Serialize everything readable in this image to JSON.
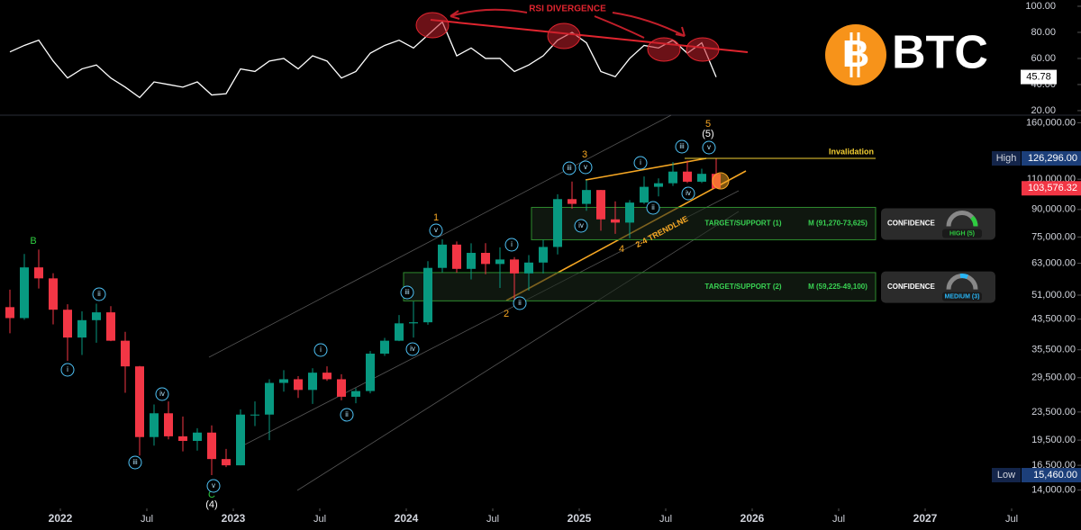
{
  "chart_data": {
    "type": "candlestick",
    "log_scale": true,
    "up_color": "#089981",
    "down_color": "#f23645",
    "x": [
      "2021-09",
      "2021-10",
      "2021-11",
      "2021-12",
      "2022-01",
      "2022-02",
      "2022-03",
      "2022-04",
      "2022-05",
      "2022-06",
      "2022-07",
      "2022-08",
      "2022-09",
      "2022-10",
      "2022-11",
      "2022-12",
      "2023-01",
      "2023-02",
      "2023-03",
      "2023-04",
      "2023-05",
      "2023-06",
      "2023-07",
      "2023-08",
      "2023-09",
      "2023-10",
      "2023-11",
      "2023-12",
      "2024-01",
      "2024-02",
      "2024-03",
      "2024-04",
      "2024-05",
      "2024-06",
      "2024-07",
      "2024-08",
      "2024-09",
      "2024-10",
      "2024-11",
      "2024-12",
      "2025-01",
      "2025-02",
      "2025-03",
      "2025-04",
      "2025-05",
      "2025-06",
      "2025-07",
      "2025-08",
      "2025-09",
      "2025-10"
    ],
    "open": [
      47100,
      43800,
      61300,
      57000,
      46300,
      38500,
      43200,
      45500,
      37700,
      31800,
      19900,
      23300,
      20000,
      19400,
      20500,
      17200,
      16500,
      23100,
      23100,
      28500,
      29200,
      27200,
      30500,
      29200,
      26000,
      27000,
      34600,
      37700,
      42300,
      42600,
      61100,
      71300,
      60700,
      67500,
      62700,
      64600,
      58900,
      63300,
      70200,
      96400,
      93400,
      102400,
      84300,
      82500,
      94200,
      104600,
      107100,
      115700,
      108200,
      114000
    ],
    "high": [
      52900,
      67000,
      69000,
      59000,
      48000,
      45800,
      48200,
      47400,
      40000,
      31900,
      24700,
      25200,
      22800,
      21100,
      21500,
      18400,
      23900,
      25200,
      29200,
      31000,
      29800,
      31400,
      31800,
      30200,
      27500,
      35200,
      38400,
      44700,
      48900,
      63900,
      73800,
      72800,
      71900,
      72000,
      70000,
      65600,
      66500,
      73600,
      99600,
      108300,
      109400,
      102500,
      95000,
      95800,
      112000,
      110600,
      123200,
      124500,
      117900,
      126296
    ],
    "low": [
      39600,
      43300,
      53300,
      42000,
      33000,
      34300,
      37200,
      37600,
      26700,
      17600,
      18800,
      19600,
      18100,
      18200,
      15460,
      16300,
      16500,
      21400,
      19500,
      26900,
      25800,
      24800,
      28900,
      25400,
      24900,
      26600,
      34100,
      37600,
      38500,
      41900,
      59300,
      59200,
      56600,
      58600,
      53500,
      49100,
      52600,
      58900,
      66800,
      90500,
      89200,
      78200,
      76600,
      74400,
      93400,
      98200,
      105200,
      107300,
      107300,
      103500
    ],
    "close": [
      43800,
      61300,
      57000,
      46300,
      38500,
      43200,
      45500,
      37700,
      31800,
      19900,
      23300,
      20000,
      19400,
      20500,
      17200,
      16500,
      23100,
      23100,
      28500,
      29200,
      27200,
      30500,
      29200,
      26000,
      27000,
      34600,
      37700,
      42300,
      42600,
      61100,
      71300,
      60700,
      67500,
      62700,
      64600,
      58900,
      63300,
      70200,
      96400,
      93400,
      102400,
      84300,
      82500,
      94200,
      104600,
      107100,
      115700,
      108200,
      114000,
      103576.32
    ],
    "ylim": [
      12400,
      166200
    ],
    "yticks": [
      {
        "value": 160000,
        "label": "160,000.00"
      },
      {
        "value": 110000,
        "label": "110,000.00"
      },
      {
        "value": 90000,
        "label": "90,000.00"
      },
      {
        "value": 75000,
        "label": "75,000.00"
      },
      {
        "value": 63000,
        "label": "63,000.00"
      },
      {
        "value": 51000,
        "label": "51,000.00"
      },
      {
        "value": 43500,
        "label": "43,500.00"
      },
      {
        "value": 35500,
        "label": "35,500.00"
      },
      {
        "value": 29500,
        "label": "29,500.00"
      },
      {
        "value": 23500,
        "label": "23,500.00"
      },
      {
        "value": 19500,
        "label": "19,500.00"
      },
      {
        "value": 16500,
        "label": "16,500.00"
      },
      {
        "value": 14000,
        "label": "14,000.00"
      }
    ],
    "xticks": [
      {
        "value": "2022-01",
        "label": "2022"
      },
      {
        "value": "2022-07",
        "label": "Jul"
      },
      {
        "value": "2023-01",
        "label": "2023"
      },
      {
        "value": "2023-07",
        "label": "Jul"
      },
      {
        "value": "2024-01",
        "label": "2024"
      },
      {
        "value": "2024-07",
        "label": "Jul"
      },
      {
        "value": "2025-01",
        "label": "2025"
      },
      {
        "value": "2025-07",
        "label": "Jul"
      },
      {
        "value": "2026-01",
        "label": "2026"
      },
      {
        "value": "2026-07",
        "label": "Jul"
      },
      {
        "value": "2027-01",
        "label": "2027"
      },
      {
        "value": "2027-07",
        "label": "Jul"
      }
    ],
    "high_marker": {
      "label": "High",
      "value": 126296,
      "value_label": "126,296.00"
    },
    "low_marker": {
      "label": "Low",
      "value": 15460,
      "value_label": "15,460.00"
    },
    "last_price": {
      "value": 103576.32,
      "value_label": "103,576.32"
    },
    "zones": [
      {
        "label": "TARGET/SUPPORT (1)",
        "range_label": "M (91,270-73,625)",
        "top": 91270,
        "bottom": 73625,
        "confidence_title": "CONFIDENCE",
        "confidence": "HIGH (5)",
        "color": "#2ecc40"
      },
      {
        "label": "TARGET/SUPPORT (2)",
        "range_label": "M (59,225-49,100)",
        "top": 59225,
        "bottom": 49100,
        "confidence_title": "CONFIDENCE",
        "confidence": "MEDIUM (3)",
        "color": "#29b6f6"
      }
    ],
    "rsi": {
      "values": [
        65,
        70,
        74,
        58,
        45,
        52,
        55,
        45,
        38,
        30,
        42,
        40,
        38,
        42,
        32,
        33,
        52,
        50,
        58,
        60,
        52,
        62,
        58,
        45,
        50,
        64,
        70,
        74,
        68,
        78,
        88,
        62,
        68,
        60,
        60,
        50,
        55,
        62,
        74,
        80,
        72,
        50,
        46,
        60,
        70,
        68,
        74,
        64,
        72,
        45.78
      ],
      "color": "#ffffff",
      "ylim": [
        17.2,
        104.8
      ],
      "yticks": [
        {
          "value": 100,
          "label": "100.00"
        },
        {
          "value": 80,
          "label": "80.00"
        },
        {
          "value": 60,
          "label": "60.00"
        },
        {
          "value": 40,
          "label": "40.00"
        },
        {
          "value": 20,
          "label": "20.00"
        }
      ],
      "annotation": "RSI DIVERGENCE"
    },
    "annotations": {
      "invalidation": "Invalidation",
      "trendline": "2-4 TRENDLNE"
    },
    "wave_labels": [
      {
        "text": "B",
        "color": "#2ecc40"
      },
      {
        "text": "C",
        "color": "#2ecc40"
      },
      {
        "text": "(4)",
        "color": "#ffffff"
      },
      {
        "text": "v",
        "circled": true
      },
      {
        "text": "i",
        "circled": true
      },
      {
        "text": "ii",
        "circled": true
      },
      {
        "text": "iii",
        "circled": true
      },
      {
        "text": "iv",
        "circled": true
      },
      {
        "text": "i",
        "circled": true
      },
      {
        "text": "ii",
        "circled": true
      },
      {
        "text": "iii",
        "circled": true
      },
      {
        "text": "iv",
        "circled": true
      },
      {
        "text": "v",
        "circled": true
      },
      {
        "text": "1",
        "color": "#f5a623"
      },
      {
        "text": "2",
        "color": "#f5a623"
      },
      {
        "text": "ii",
        "circled": true
      },
      {
        "text": "i",
        "circled": true
      },
      {
        "text": "iii",
        "circled": true
      },
      {
        "text": "iv",
        "circled": true
      },
      {
        "text": "v",
        "circled": true
      },
      {
        "text": "3",
        "color": "#f5a623"
      },
      {
        "text": "4",
        "color": "#f5a623"
      },
      {
        "text": "ii",
        "circled": true
      },
      {
        "text": "iv",
        "circled": true
      },
      {
        "text": "i",
        "circled": true
      },
      {
        "text": "iii",
        "circled": true
      },
      {
        "text": "v",
        "circled": true
      },
      {
        "text": "(5)",
        "color": "#ffffff"
      },
      {
        "text": "5",
        "color": "#f5a623"
      }
    ],
    "logo": {
      "symbol": "B",
      "text": "BTC"
    }
  }
}
